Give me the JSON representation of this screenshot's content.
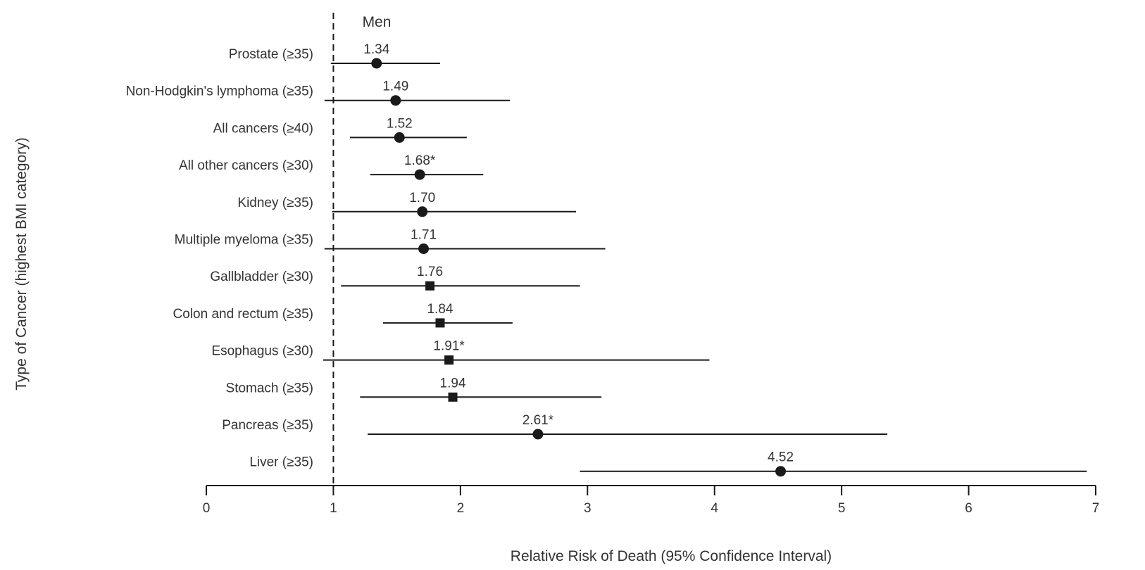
{
  "chart_data": {
    "type": "forest",
    "title": "Men",
    "xlabel": "Relative Risk of Death (95% Confidence Interval)",
    "ylabel": "Type of Cancer (highest BMI category)",
    "xlim": [
      0,
      7
    ],
    "xticks": [
      "0",
      "1",
      "2",
      "3",
      "4",
      "5",
      "6",
      "7"
    ],
    "reference_line": 1,
    "rows": [
      {
        "label": "Prostate (≥35)",
        "value": 1.34,
        "value_label": "1.34",
        "ci": [
          0.98,
          1.84
        ],
        "marker": "circle"
      },
      {
        "label": "Non-Hodgkin's lymphoma (≥35)",
        "value": 1.49,
        "value_label": "1.49",
        "ci": [
          0.93,
          2.39
        ],
        "marker": "circle"
      },
      {
        "label": "All cancers (≥40)",
        "value": 1.52,
        "value_label": "1.52",
        "ci": [
          1.13,
          2.05
        ],
        "marker": "circle"
      },
      {
        "label": "All other cancers (≥30)",
        "value": 1.68,
        "value_label": "1.68*",
        "ci": [
          1.29,
          2.18
        ],
        "marker": "circle"
      },
      {
        "label": "Kidney (≥35)",
        "value": 1.7,
        "value_label": "1.70",
        "ci": [
          0.99,
          2.91
        ],
        "marker": "circle"
      },
      {
        "label": "Multiple myeloma (≥35)",
        "value": 1.71,
        "value_label": "1.71",
        "ci": [
          0.93,
          3.14
        ],
        "marker": "circle"
      },
      {
        "label": "Gallbladder (≥30)",
        "value": 1.76,
        "value_label": "1.76",
        "ci": [
          1.06,
          2.94
        ],
        "marker": "square"
      },
      {
        "label": "Colon and rectum (≥35)",
        "value": 1.84,
        "value_label": "1.84",
        "ci": [
          1.39,
          2.41
        ],
        "marker": "square"
      },
      {
        "label": "Esophagus (≥30)",
        "value": 1.91,
        "value_label": "1.91*",
        "ci": [
          0.92,
          3.96
        ],
        "marker": "square"
      },
      {
        "label": "Stomach (≥35)",
        "value": 1.94,
        "value_label": "1.94",
        "ci": [
          1.21,
          3.11
        ],
        "marker": "square"
      },
      {
        "label": "Pancreas (≥35)",
        "value": 2.61,
        "value_label": "2.61*",
        "ci": [
          1.27,
          5.36
        ],
        "marker": "circle"
      },
      {
        "label": "Liver (≥35)",
        "value": 4.52,
        "value_label": "4.52",
        "ci": [
          2.94,
          6.93
        ],
        "marker": "circle"
      }
    ],
    "grid": false,
    "legend": "none",
    "colors": {
      "ink": "#1a1a1a",
      "text": "#333333"
    }
  }
}
